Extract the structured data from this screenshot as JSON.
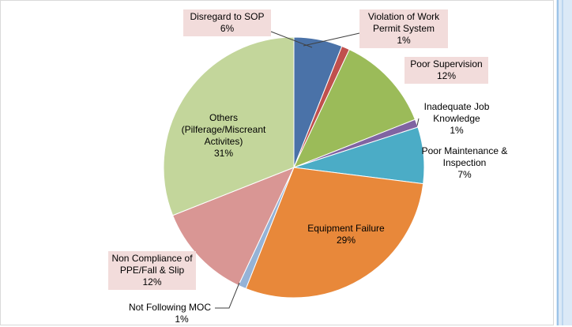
{
  "chart_data": {
    "type": "pie",
    "categories": [
      "Disregard to SOP",
      "Violation of Work Permit System",
      "Poor Supervision",
      "Inadequate Job Knowledge",
      "Poor Maintenance & Inspection",
      "Equipment Failure",
      "Not Following MOC",
      "Non Compliance of PPE/Fall & Slip",
      "Others (Pilferage/Miscreant Activites)"
    ],
    "values": [
      6,
      1,
      12,
      1,
      7,
      29,
      1,
      12,
      31
    ],
    "value_labels": [
      "6%",
      "1%",
      "12%",
      "1%",
      "7%",
      "29%",
      "1%",
      "12%",
      "31%"
    ],
    "colors": [
      "#4a72a8",
      "#c0504d",
      "#9bbb59",
      "#8064a2",
      "#4bacc6",
      "#e8883a",
      "#95b3d7",
      "#d99694",
      "#c3d69b"
    ]
  }
}
